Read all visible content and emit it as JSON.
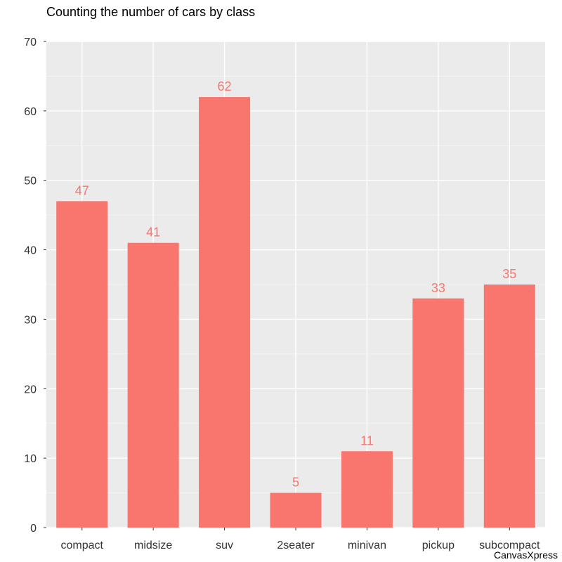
{
  "chart_data": {
    "type": "bar",
    "title": "Counting the number of cars by class",
    "categories": [
      "compact",
      "midsize",
      "suv",
      "2seater",
      "minivan",
      "pickup",
      "subcompact"
    ],
    "values": [
      47,
      41,
      62,
      5,
      11,
      33,
      35
    ],
    "ylim": [
      0,
      70
    ],
    "yticks": [
      0,
      10,
      20,
      30,
      40,
      50,
      60,
      70
    ],
    "grid": true,
    "data_labels": true,
    "bar_color": "#F8766D",
    "label_color": "#F8766D",
    "panel_color": "#EBEBEB"
  },
  "watermark": "CanvasXpress"
}
